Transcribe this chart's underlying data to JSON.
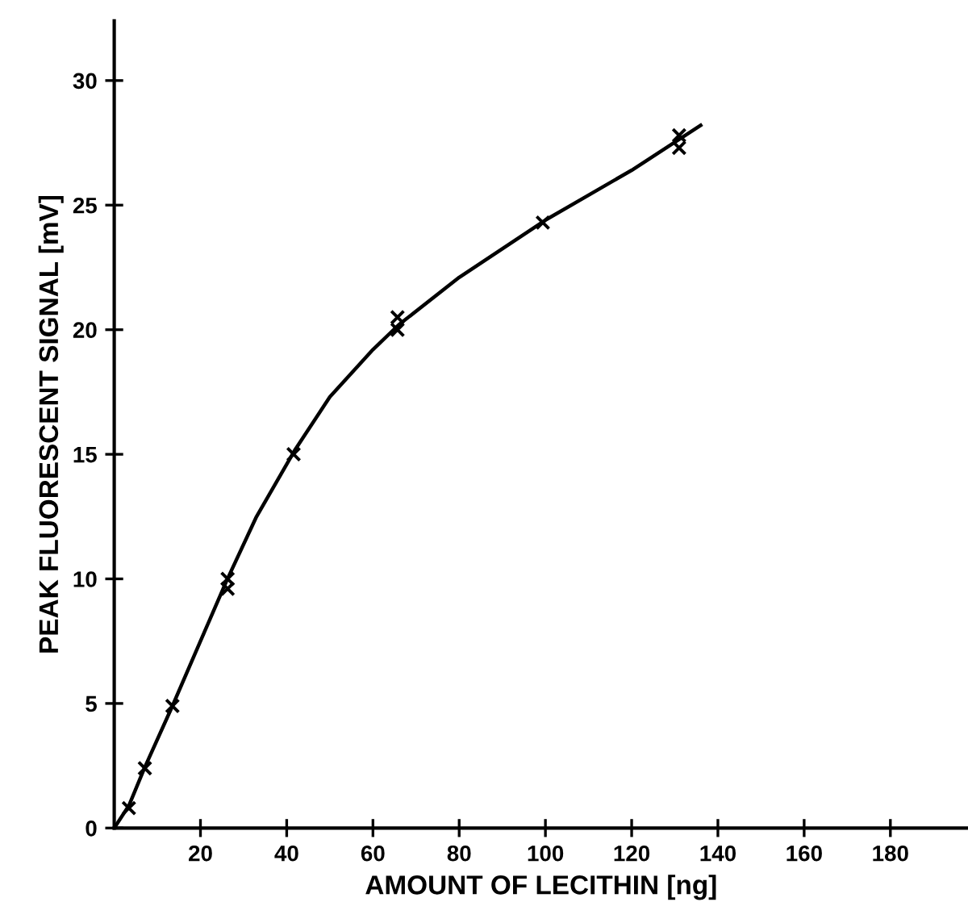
{
  "chart_data": {
    "type": "scatter",
    "xlabel": "AMOUNT OF LECITHIN [ng]",
    "ylabel": "PEAK FLUORESCENT SIGNAL [mV]",
    "xlim": [
      0,
      198
    ],
    "ylim": [
      0,
      32.4
    ],
    "xticks": [
      20,
      40,
      60,
      80,
      100,
      120,
      140,
      160,
      180
    ],
    "yticks": [
      0,
      5,
      10,
      15,
      20,
      25,
      30
    ],
    "grid": false,
    "legend": false,
    "series": [
      {
        "marker": "cross",
        "color": "#000000",
        "x": [
          3.4,
          7.1,
          13.5,
          26.3,
          26.3,
          41.6,
          65.7,
          65.7,
          99.4,
          131,
          131
        ],
        "values": [
          0.8,
          2.4,
          4.9,
          10.0,
          9.6,
          15.0,
          20.0,
          20.5,
          24.3,
          27.8,
          27.3
        ]
      },
      {
        "type": "line",
        "marker": "none",
        "line_style": "solid",
        "color": "#000000",
        "x": [
          0,
          3.4,
          7,
          13.5,
          20,
          26,
          33,
          42,
          50,
          60,
          66,
          80,
          100,
          120,
          136
        ],
        "values": [
          0,
          0.9,
          2.4,
          4.9,
          7.5,
          9.9,
          12.5,
          15.2,
          17.3,
          19.2,
          20.2,
          22.1,
          24.4,
          26.4,
          28.2
        ]
      }
    ]
  }
}
